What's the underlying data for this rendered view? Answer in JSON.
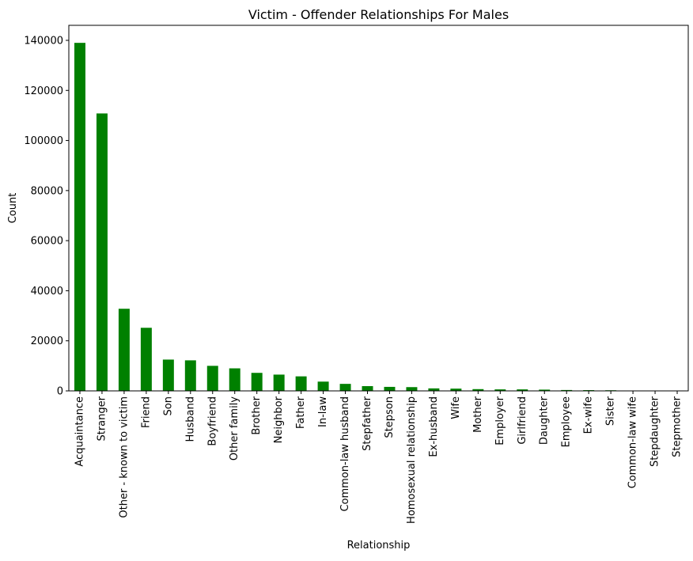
{
  "chart_data": {
    "type": "bar",
    "title": "Victim - Offender Relationships For Males",
    "xlabel": "Relationship",
    "ylabel": "Count",
    "ylim": [
      0,
      146000
    ],
    "yticks": [
      0,
      20000,
      40000,
      60000,
      80000,
      100000,
      120000,
      140000
    ],
    "ytick_labels": [
      "0",
      "20000",
      "40000",
      "60000",
      "80000",
      "100000",
      "120000",
      "140000"
    ],
    "grid": false,
    "legend": "none",
    "bar_color": "#008000",
    "categories": [
      "Acquaintance",
      "Stranger",
      "Other - known to victim",
      "Friend",
      "Son",
      "Husband",
      "Boyfriend",
      "Other family",
      "Brother",
      "Neighbor",
      "Father",
      "In-law",
      "Common-law husband",
      "Stepfather",
      "Stepson",
      "Homosexual relationship",
      "Ex-husband",
      "Wife",
      "Mother",
      "Employer",
      "Girlfriend",
      "Daughter",
      "Employee",
      "Ex-wife",
      "Sister",
      "Common-law wife",
      "Stepdaughter",
      "Stepmother"
    ],
    "values": [
      139000,
      110800,
      32800,
      25200,
      12500,
      12200,
      10000,
      9000,
      7200,
      6500,
      5800,
      3700,
      2800,
      1900,
      1600,
      1500,
      1000,
      900,
      700,
      600,
      600,
      500,
      350,
      300,
      250,
      150,
      100,
      80
    ]
  }
}
